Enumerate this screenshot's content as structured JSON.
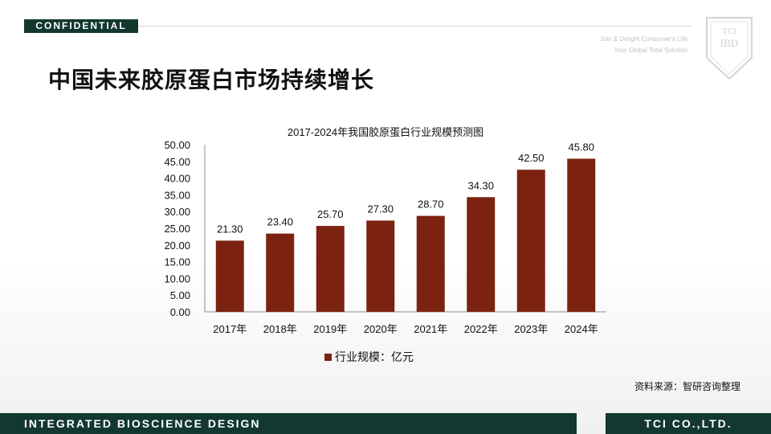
{
  "header": {
    "confidential": "CONFIDENTIAL",
    "tagline_line1": "Join & Delight Consumer's Life",
    "tagline_line2": "Your Global Total Solution"
  },
  "crest": {
    "line1": "TCI",
    "line2": "IBD"
  },
  "page_title": "中国未来胶原蛋白市场持续增长",
  "source": "资料来源：智研咨询整理",
  "footer": {
    "left": "INTEGRATED BIOSCIENCE DESIGN",
    "right": "TCI CO.,LTD."
  },
  "colors": {
    "brand_green": "#12382f",
    "bar": "#7b2310"
  },
  "chart_data": {
    "type": "bar",
    "title": "2017-2024年我国胶原蛋白行业规模预测图",
    "categories": [
      "2017年",
      "2018年",
      "2019年",
      "2020年",
      "2021年",
      "2022年",
      "2023年",
      "2024年"
    ],
    "series": [
      {
        "name": "行业规模：亿元",
        "values": [
          21.3,
          23.4,
          25.7,
          27.3,
          28.7,
          34.3,
          42.5,
          45.8
        ],
        "labels": [
          "21.30",
          "23.40",
          "25.70",
          "27.30",
          "28.70",
          "34.30",
          "42.50",
          "45.80"
        ]
      }
    ],
    "yticks": [
      "0.00",
      "5.00",
      "10.00",
      "15.00",
      "20.00",
      "25.00",
      "30.00",
      "35.00",
      "40.00",
      "45.00",
      "50.00"
    ],
    "ylim": [
      0,
      50
    ],
    "grid": false,
    "legend": "bottom"
  }
}
